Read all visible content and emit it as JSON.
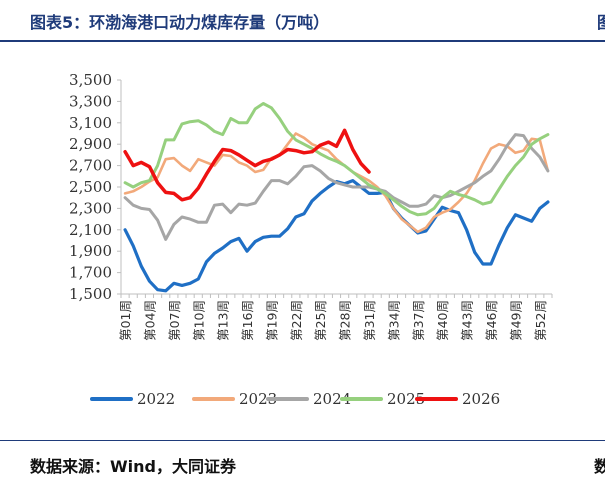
{
  "header": {
    "title": "图表5：环渤海港口动力煤库存量（万吨）",
    "edge_glyph": "图"
  },
  "footer": {
    "source": "数据来源：Wind，大同证券",
    "edge_glyph": "数"
  },
  "chart_data": {
    "type": "line",
    "ylim": [
      1500,
      3500
    ],
    "yticks": [
      "1,500",
      "1,700",
      "1,900",
      "2,100",
      "2,300",
      "2,500",
      "2,700",
      "2,900",
      "3,100",
      "3,300",
      "3,500"
    ],
    "ytick_values": [
      1500,
      1700,
      1900,
      2100,
      2300,
      2500,
      2700,
      2900,
      3100,
      3300,
      3500
    ],
    "x_count": 53,
    "xticks": [
      {
        "index": 1,
        "label": "第01周"
      },
      {
        "index": 4,
        "label": "第04周"
      },
      {
        "index": 7,
        "label": "第07周"
      },
      {
        "index": 10,
        "label": "第10周"
      },
      {
        "index": 13,
        "label": "第13周"
      },
      {
        "index": 16,
        "label": "第16周"
      },
      {
        "index": 19,
        "label": "第19周"
      },
      {
        "index": 22,
        "label": "第22周"
      },
      {
        "index": 25,
        "label": "第25周"
      },
      {
        "index": 28,
        "label": "第28周"
      },
      {
        "index": 31,
        "label": "第31周"
      },
      {
        "index": 34,
        "label": "第34周"
      },
      {
        "index": 37,
        "label": "第37周"
      },
      {
        "index": 40,
        "label": "第40周"
      },
      {
        "index": 43,
        "label": "第43周"
      },
      {
        "index": 46,
        "label": "第46周"
      },
      {
        "index": 49,
        "label": "第49周"
      },
      {
        "index": 52,
        "label": "第52周"
      }
    ],
    "legend_position": "bottom",
    "series": [
      {
        "name": "2022",
        "color": "#1f6fc5",
        "width": 3.2,
        "x": [
          1,
          2,
          3,
          4,
          5,
          6,
          7,
          8,
          9,
          10,
          11,
          12,
          13,
          14,
          15,
          16,
          17,
          18,
          19,
          20,
          21,
          22,
          23,
          24,
          25,
          26,
          27,
          28,
          29,
          30,
          31,
          32,
          33,
          34,
          35,
          36,
          37,
          38,
          39,
          40,
          41,
          42,
          43,
          44,
          45,
          46,
          47,
          48,
          49,
          50,
          51,
          52,
          53
        ],
        "y": [
          2100,
          1950,
          1760,
          1620,
          1540,
          1530,
          1600,
          1580,
          1600,
          1640,
          1800,
          1880,
          1930,
          1990,
          2020,
          1900,
          1990,
          2030,
          2040,
          2040,
          2110,
          2220,
          2250,
          2370,
          2440,
          2500,
          2550,
          2530,
          2560,
          2500,
          2440,
          2440,
          2450,
          2300,
          2210,
          2140,
          2070,
          2090,
          2200,
          2310,
          2280,
          2260,
          2100,
          1890,
          1780,
          1780,
          1960,
          2120,
          2240,
          2210,
          2180,
          2300,
          2360
        ]
      },
      {
        "name": "2023",
        "color": "#f2a97a",
        "width": 2.6,
        "x": [
          1,
          2,
          3,
          4,
          5,
          6,
          7,
          8,
          9,
          10,
          11,
          12,
          13,
          14,
          15,
          16,
          17,
          18,
          19,
          20,
          21,
          22,
          23,
          24,
          25,
          26,
          27,
          28,
          29,
          30,
          31,
          32,
          33,
          34,
          35,
          36,
          37,
          38,
          39,
          40,
          41,
          42,
          43,
          44,
          45,
          46,
          47,
          48,
          49,
          50,
          51,
          52,
          53
        ],
        "y": [
          2440,
          2460,
          2500,
          2550,
          2590,
          2760,
          2770,
          2700,
          2650,
          2760,
          2730,
          2700,
          2800,
          2790,
          2730,
          2700,
          2640,
          2660,
          2770,
          2800,
          2900,
          3000,
          2960,
          2900,
          2870,
          2840,
          2760,
          2700,
          2640,
          2600,
          2560,
          2500,
          2420,
          2300,
          2200,
          2140,
          2080,
          2120,
          2220,
          2260,
          2290,
          2360,
          2440,
          2560,
          2720,
          2860,
          2900,
          2880,
          2820,
          2840,
          2950,
          2940,
          2650
        ]
      },
      {
        "name": "2024",
        "color": "#a6a6a6",
        "width": 3,
        "x": [
          1,
          2,
          3,
          4,
          5,
          6,
          7,
          8,
          9,
          10,
          11,
          12,
          13,
          14,
          15,
          16,
          17,
          18,
          19,
          20,
          21,
          22,
          23,
          24,
          25,
          26,
          27,
          28,
          29,
          30,
          31,
          32,
          33,
          34,
          35,
          36,
          37,
          38,
          39,
          40,
          41,
          42,
          43,
          44,
          45,
          46,
          47,
          48,
          49,
          50,
          51,
          52,
          53
        ],
        "y": [
          2400,
          2330,
          2300,
          2290,
          2190,
          2010,
          2150,
          2220,
          2200,
          2170,
          2170,
          2330,
          2340,
          2260,
          2340,
          2330,
          2350,
          2460,
          2560,
          2560,
          2530,
          2600,
          2690,
          2700,
          2650,
          2580,
          2540,
          2520,
          2500,
          2500,
          2500,
          2480,
          2460,
          2400,
          2360,
          2320,
          2320,
          2340,
          2420,
          2400,
          2420,
          2460,
          2500,
          2540,
          2600,
          2650,
          2760,
          2890,
          2990,
          2980,
          2860,
          2780,
          2650
        ]
      },
      {
        "name": "2025",
        "color": "#96d07e",
        "width": 3,
        "x": [
          1,
          2,
          3,
          4,
          5,
          6,
          7,
          8,
          9,
          10,
          11,
          12,
          13,
          14,
          15,
          16,
          17,
          18,
          19,
          20,
          21,
          22,
          23,
          24,
          25,
          26,
          27,
          28,
          29,
          30,
          31,
          32,
          33,
          34,
          35,
          36,
          37,
          38,
          39,
          40,
          41,
          42,
          43,
          44,
          45,
          46,
          47,
          48,
          49,
          50,
          51,
          52,
          53
        ],
        "y": [
          2540,
          2500,
          2540,
          2560,
          2700,
          2940,
          2940,
          3090,
          3110,
          3120,
          3080,
          3020,
          2990,
          3140,
          3100,
          3100,
          3230,
          3280,
          3240,
          3140,
          3020,
          2940,
          2900,
          2860,
          2810,
          2770,
          2740,
          2700,
          2640,
          2580,
          2520,
          2480,
          2440,
          2380,
          2320,
          2270,
          2240,
          2250,
          2300,
          2400,
          2460,
          2430,
          2410,
          2380,
          2340,
          2360,
          2480,
          2600,
          2700,
          2780,
          2900,
          2950,
          2990
        ]
      },
      {
        "name": "2026",
        "color": "#ee1111",
        "width": 3.5,
        "x": [
          1,
          2,
          3,
          4,
          5,
          6,
          7,
          8,
          9,
          10,
          11,
          12,
          13,
          14,
          15,
          16,
          17,
          18,
          19,
          20,
          21,
          22,
          23,
          24,
          25,
          26,
          27,
          28,
          29,
          30,
          31
        ],
        "y": [
          2830,
          2700,
          2730,
          2690,
          2540,
          2450,
          2440,
          2380,
          2400,
          2490,
          2620,
          2740,
          2850,
          2840,
          2800,
          2750,
          2700,
          2740,
          2760,
          2800,
          2850,
          2840,
          2820,
          2830,
          2890,
          2920,
          2880,
          3030,
          2850,
          2720,
          2640
        ]
      }
    ]
  }
}
